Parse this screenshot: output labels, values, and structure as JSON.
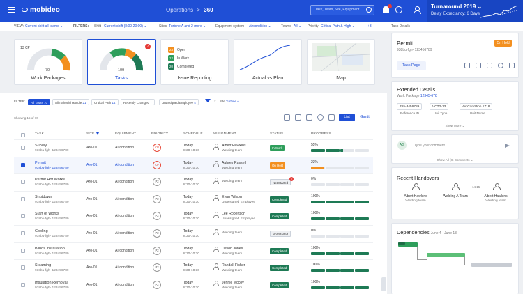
{
  "app": {
    "name": "mobideo",
    "brand_color": "#1f4fd6"
  },
  "breadcrumb": {
    "parent": "Operations",
    "separator": ">",
    "current": "360"
  },
  "search": {
    "placeholder": "Task, Team, Site, Equipment"
  },
  "turnaround": {
    "title": "Turnaround 2019",
    "title_chevron": "⌄",
    "subtitle": "Delay Expectancy: 6 Days"
  },
  "filterbar": {
    "view_label": "VIEW:",
    "view_value": "Current shift all teams ⌄",
    "filters_label": "FILTERS:",
    "shift_label": "Shift",
    "shift_value": "Current shift (8:00-20:00) ⌄",
    "sites_label": "Sites",
    "sites_value": "Turbine A and 2 more ⌄",
    "equipment_label": "Equipment system",
    "equipment_value": "Aircondition ⌄",
    "teams_label": "Teams",
    "teams_value": "All ⌄",
    "priority_label": "Priority",
    "priority_value": "Critical Path & High ⌄",
    "more": "+3"
  },
  "side_tab": {
    "label": "Task Details"
  },
  "cards": {
    "work_packages": {
      "label": "Work Packages",
      "gauge_label": "13 CP",
      "gauge_value": "70"
    },
    "tasks": {
      "label": "Tasks",
      "gauge_value": "109",
      "badge": "7"
    },
    "issue_reporting": {
      "label": "Issue Reporting",
      "rows": [
        {
          "count": "23",
          "label": "Open",
          "color": "#f39020"
        },
        {
          "count": "12",
          "label": "In Work",
          "color": "#2e9e5b"
        },
        {
          "count": "20",
          "label": "Completed",
          "color": "#1e7a55"
        }
      ]
    },
    "actual_vs_plan": {
      "label": "Actual vs Plan"
    },
    "map": {
      "label": "Map"
    }
  },
  "task_filters": {
    "label": "FILTER:",
    "chips": [
      {
        "label": "All Tasks",
        "count": "70"
      },
      {
        "label": "All I Should Handle",
        "count": "21"
      },
      {
        "label": "Critical Path",
        "count": "14"
      },
      {
        "label": "Recently Changed",
        "count": "7"
      },
      {
        "label": "Unassigned Employee",
        "count": "4"
      }
    ],
    "site_chip_close": "×",
    "site_chip_label": "Site",
    "site_chip_value": "Turbine A"
  },
  "showing": "Showing 15 of 70",
  "view_toggle": {
    "list": "List",
    "gantt": "Gantt"
  },
  "table": {
    "headers": {
      "task": "TASK",
      "site": "SITE",
      "equipment": "EQUIPMENT",
      "priority": "PRIORITY",
      "schedule": "SCHEDULE",
      "assignment": "ASSIGNMENT",
      "status": "STATUS",
      "progress": "PROGRESS"
    },
    "rows": [
      {
        "name": "Survey",
        "id": "938bu-fgh- 123456789",
        "site": "Aro-01",
        "equipment": "Aircondition",
        "priority": "CP",
        "date": "Today",
        "time": "8:30-10:30",
        "assignee": "Albert Hawkins",
        "team": "Welding team",
        "status": "In Work",
        "status_class": "inwork",
        "progress": "55%",
        "progress_value": 55
      },
      {
        "name": "Permit",
        "id": "938bu-fgh- 123456789",
        "site": "Aro-01",
        "equipment": "Aircondition",
        "priority": "CP",
        "date": "Today",
        "time": "8:30-10:30",
        "assignee": "Aubrey Russell",
        "team": "Welding team",
        "status": "On Hold",
        "status_class": "onhold",
        "progress": "23%",
        "progress_value": 23
      },
      {
        "name": "Permit Hot Works",
        "id": "938bu-fgh- 123456789",
        "site": "Aro-01",
        "equipment": "Aircondition",
        "priority": "P2",
        "date": "Today",
        "time": "8:30-10:30",
        "assignee": "",
        "team": "Welding team",
        "status": "Not Started",
        "status_class": "notstarted",
        "status_badge": "2",
        "progress": "0%",
        "progress_value": 0
      },
      {
        "name": "Shutdown",
        "id": "938bu-fgh- 123456789",
        "site": "Aro-01",
        "equipment": "Aircondition",
        "priority": "P2",
        "date": "Today",
        "time": "8:30-10:30",
        "assignee": "Evan Wilson",
        "team": "Unassigned Employee",
        "status": "Completed",
        "status_class": "completed",
        "progress": "100%",
        "progress_value": 100
      },
      {
        "name": "Start of Works",
        "id": "938bu-fgh- 123456789",
        "site": "Aro-01",
        "equipment": "Aircondition",
        "priority": "P2",
        "date": "Today",
        "time": "8:30-10:30",
        "assignee": "Lee Robertson",
        "team": "Unassigned Employee",
        "status": "Completed",
        "status_class": "completed",
        "progress": "100%",
        "progress_value": 100
      },
      {
        "name": "Cooling",
        "id": "938bu-fgh- 123456789",
        "site": "Aro-01",
        "equipment": "Aircondition",
        "priority": "P2",
        "date": "Today",
        "time": "8:30-10:30",
        "assignee": "",
        "team": "Welding team",
        "status": "Not Started",
        "status_class": "notstarted",
        "progress": "0%",
        "progress_value": 0
      },
      {
        "name": "Blinds Installation",
        "id": "938bu-fgh- 123456789",
        "site": "Aro-01",
        "equipment": "Aircondition",
        "priority": "P2",
        "date": "Today",
        "time": "8:30-10:30",
        "assignee": "Devon Jones",
        "team": "Welding team",
        "status": "Completed",
        "status_class": "completed",
        "progress": "100%",
        "progress_value": 100
      },
      {
        "name": "Steaming",
        "id": "938bu-fgh- 123456789",
        "site": "Aro-01",
        "equipment": "Aircondition",
        "priority": "P2",
        "date": "Today",
        "time": "8:30-10:30",
        "assignee": "Randall Fisher",
        "team": "Welding team",
        "status": "Completed",
        "status_class": "completed",
        "progress": "100%",
        "progress_value": 100
      },
      {
        "name": "Insulation Removal",
        "id": "938bu-fgh- 123456789",
        "site": "Aro-01",
        "equipment": "Aircondition",
        "priority": "P2",
        "date": "Today",
        "time": "8:30-10:30",
        "assignee": "Jennie Mccoy",
        "team": "Welding team",
        "status": "Completed",
        "status_class": "completed",
        "progress": "100%",
        "progress_value": 100
      }
    ]
  },
  "details": {
    "title": "Permit",
    "id": "938bu-fgh- 123456789",
    "status": "On Hold",
    "action": "Task Page",
    "extended_title": "Extended Details",
    "work_package_label": "Work Package",
    "work_package_value": "12345-678",
    "tags": [
      "765-3456789",
      "VCT2-13",
      "Air Condition 1718"
    ],
    "tag_labels": [
      "Reference ID",
      "Unit Type",
      "Unit Name"
    ],
    "show_more": "Show More ⌄",
    "avatar_initials": "AG",
    "comment_placeholder": "Type your comment",
    "show_comments": "Show All (8) Comments ⌄",
    "handovers_title": "Recent Handovers",
    "handover_time": "14:15",
    "handovers": [
      {
        "name": "Albert Hawkins",
        "team": "Welding team"
      },
      {
        "name": "Welding A Team",
        "team": ""
      },
      {
        "name": "Albert Hawkins",
        "team": "Welding team"
      }
    ],
    "dependencies_title": "Dependencies",
    "dependencies_range": "June 4 - June 13"
  }
}
